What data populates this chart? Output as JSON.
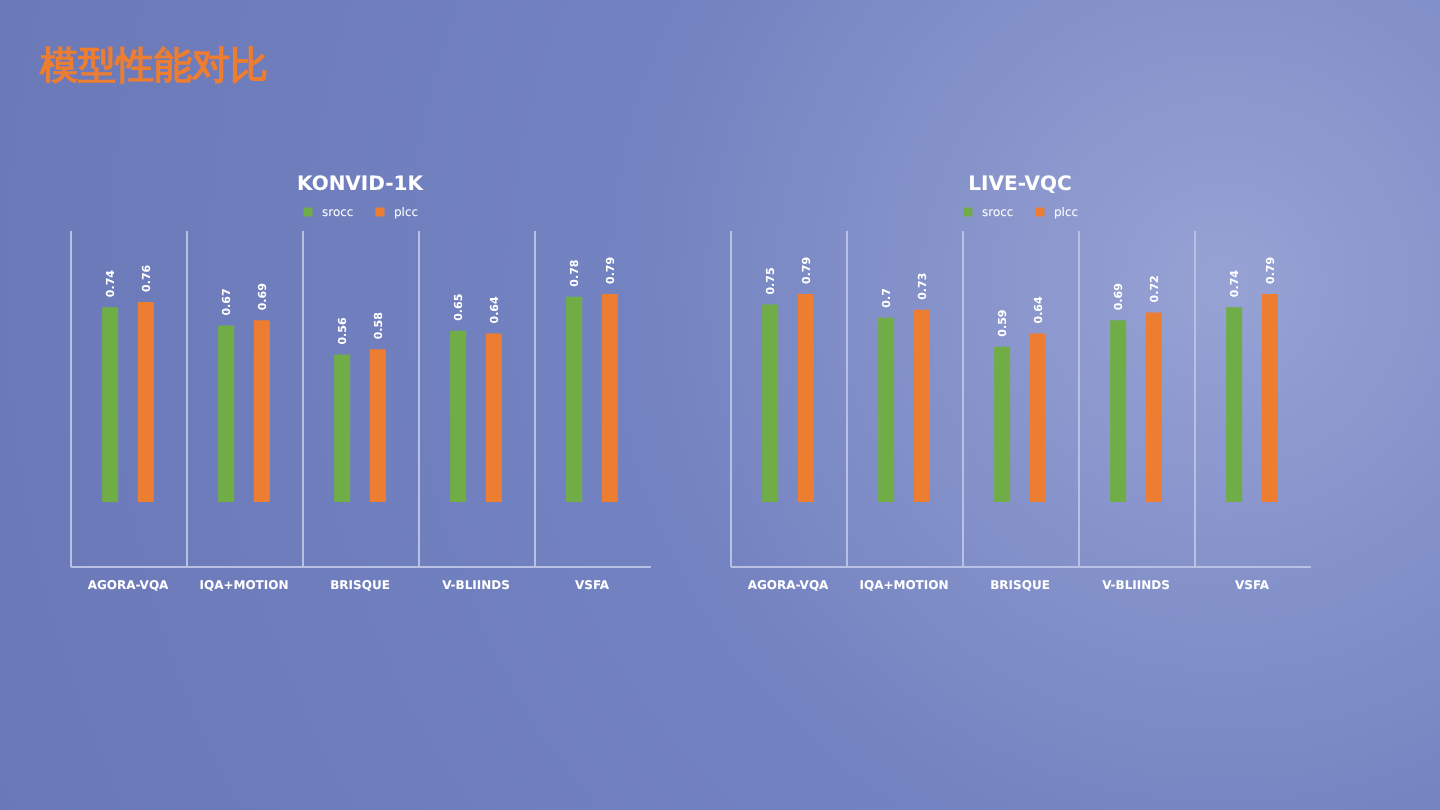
{
  "chart_data": [
    {
      "type": "bar",
      "title": "KONVID-1K",
      "annotations": [
        "模型性能对比"
      ],
      "categories": [
        "AGORA-VQA",
        "IQA+MOTION",
        "BRISQUE",
        "V-BLIINDS",
        "VSFA"
      ],
      "series": [
        {
          "name": "srocc",
          "color": "#70ad47",
          "values": [
            0.74,
            0.67,
            0.56,
            0.65,
            0.78
          ]
        },
        {
          "name": "plcc",
          "color": "#ed7d31",
          "values": [
            0.76,
            0.69,
            0.58,
            0.64,
            0.79
          ]
        }
      ],
      "data_labels": true,
      "legend": "top",
      "grid": "x"
    },
    {
      "type": "bar",
      "title": "LIVE-VQC",
      "categories": [
        "AGORA-VQA",
        "IQA+MOTION",
        "BRISQUE",
        "V-BLIINDS",
        "VSFA"
      ],
      "series": [
        {
          "name": "srocc",
          "color": "#70ad47",
          "values": [
            0.75,
            0.7,
            0.59,
            0.69,
            0.74
          ]
        },
        {
          "name": "plcc",
          "color": "#ed7d31",
          "values": [
            0.79,
            0.73,
            0.64,
            0.72,
            0.79
          ]
        }
      ],
      "data_labels": true,
      "legend": "top",
      "grid": "x"
    }
  ]
}
